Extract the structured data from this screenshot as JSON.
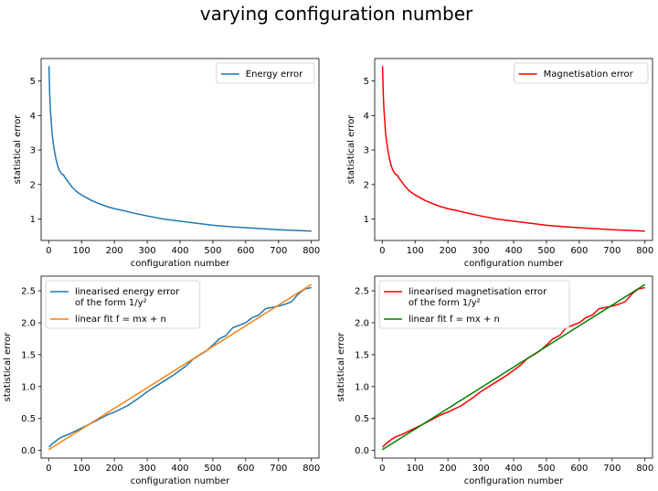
{
  "figure": {
    "title": "varying configuration number"
  },
  "chart_data": [
    {
      "type": "line",
      "xlabel": "configuration number",
      "ylabel": "statistical error",
      "xlim": [
        -23,
        823
      ],
      "ylim": [
        0.38,
        5.65
      ],
      "xticks": [
        0,
        100,
        200,
        300,
        400,
        500,
        600,
        700,
        800
      ],
      "yticks": [
        1,
        2,
        3,
        4,
        5
      ],
      "legend_position": "upper right",
      "series": [
        {
          "name": "Energy error",
          "color": "#1f77b4",
          "x": [
            1,
            3,
            5,
            8,
            10,
            14,
            18,
            22,
            27,
            33,
            40,
            45,
            50,
            60,
            70,
            80,
            90,
            100,
            115,
            130,
            150,
            175,
            200,
            230,
            260,
            300,
            350,
            400,
            450,
            500,
            550,
            600,
            650,
            700,
            750,
            800
          ],
          "y": [
            5.43,
            4.65,
            4.2,
            3.8,
            3.5,
            3.2,
            2.95,
            2.75,
            2.55,
            2.4,
            2.3,
            2.28,
            2.2,
            2.07,
            1.94,
            1.84,
            1.76,
            1.7,
            1.62,
            1.54,
            1.46,
            1.37,
            1.3,
            1.24,
            1.17,
            1.09,
            1.0,
            0.94,
            0.88,
            0.82,
            0.78,
            0.75,
            0.72,
            0.69,
            0.67,
            0.65
          ]
        }
      ]
    },
    {
      "type": "line",
      "xlabel": "configuration number",
      "ylabel": "statistical error",
      "xlim": [
        -23,
        823
      ],
      "ylim": [
        0.38,
        5.65
      ],
      "xticks": [
        0,
        100,
        200,
        300,
        400,
        500,
        600,
        700,
        800
      ],
      "yticks": [
        1,
        2,
        3,
        4,
        5
      ],
      "legend_position": "upper right",
      "series": [
        {
          "name": "Magnetisation error",
          "color": "#ff0000",
          "x": [
            1,
            3,
            5,
            8,
            10,
            14,
            18,
            22,
            27,
            33,
            40,
            45,
            50,
            60,
            70,
            80,
            90,
            100,
            115,
            130,
            150,
            175,
            200,
            230,
            260,
            300,
            350,
            400,
            450,
            500,
            550,
            600,
            650,
            700,
            750,
            800
          ],
          "y": [
            5.43,
            4.65,
            4.2,
            3.8,
            3.5,
            3.2,
            2.95,
            2.75,
            2.55,
            2.4,
            2.3,
            2.28,
            2.2,
            2.07,
            1.94,
            1.84,
            1.76,
            1.7,
            1.62,
            1.54,
            1.46,
            1.37,
            1.3,
            1.24,
            1.17,
            1.09,
            1.0,
            0.94,
            0.88,
            0.82,
            0.78,
            0.75,
            0.72,
            0.69,
            0.67,
            0.65
          ]
        }
      ]
    },
    {
      "type": "line",
      "xlabel": "configuration number",
      "ylabel": "statistical error",
      "xlim": [
        -23,
        823
      ],
      "ylim": [
        -0.12,
        2.73
      ],
      "xticks": [
        0,
        100,
        200,
        300,
        400,
        500,
        600,
        700,
        800
      ],
      "yticks": [
        0.0,
        0.5,
        1.0,
        1.5,
        2.0,
        2.5
      ],
      "legend_position": "upper left",
      "series": [
        {
          "name": "linearised energy error\n of the form 1/y²",
          "color": "#1f77b4",
          "x": [
            1,
            10,
            20,
            30,
            40,
            50,
            60,
            80,
            100,
            120,
            150,
            180,
            200,
            240,
            280,
            300,
            340,
            380,
            420,
            440,
            480,
            500,
            520,
            540,
            560,
            580,
            600,
            620,
            640,
            660,
            680,
            700,
            720,
            740,
            760,
            780,
            800
          ],
          "y": [
            0.05,
            0.1,
            0.14,
            0.18,
            0.21,
            0.23,
            0.25,
            0.3,
            0.35,
            0.4,
            0.48,
            0.56,
            0.6,
            0.7,
            0.84,
            0.92,
            1.05,
            1.18,
            1.33,
            1.43,
            1.56,
            1.65,
            1.75,
            1.8,
            1.92,
            1.96,
            2.0,
            2.08,
            2.12,
            2.22,
            2.24,
            2.26,
            2.29,
            2.33,
            2.45,
            2.53,
            2.55
          ]
        },
        {
          "name": "linear fit f = mx + n",
          "color": "#ff7f0e",
          "x": [
            0,
            800
          ],
          "y": [
            0.01,
            2.6
          ]
        }
      ]
    },
    {
      "type": "line",
      "xlabel": "configuration number",
      "ylabel": "statistical error",
      "xlim": [
        -23,
        823
      ],
      "ylim": [
        -0.12,
        2.73
      ],
      "xticks": [
        0,
        100,
        200,
        300,
        400,
        500,
        600,
        700,
        800
      ],
      "yticks": [
        0.0,
        0.5,
        1.0,
        1.5,
        2.0,
        2.5
      ],
      "legend_position": "upper left",
      "series": [
        {
          "name": "linearised magnetisation error\n of the form 1/y²",
          "color": "#ff0000",
          "x": [
            1,
            10,
            20,
            30,
            40,
            50,
            60,
            80,
            100,
            120,
            150,
            180,
            200,
            240,
            280,
            300,
            340,
            380,
            420,
            440,
            480,
            500,
            520,
            540,
            560,
            580,
            600,
            620,
            640,
            660,
            680,
            700,
            720,
            740,
            760,
            780,
            800
          ],
          "y": [
            0.05,
            0.1,
            0.14,
            0.18,
            0.21,
            0.23,
            0.25,
            0.3,
            0.35,
            0.4,
            0.48,
            0.56,
            0.6,
            0.7,
            0.84,
            0.92,
            1.05,
            1.18,
            1.33,
            1.43,
            1.56,
            1.65,
            1.75,
            1.8,
            1.92,
            1.96,
            2.0,
            2.08,
            2.12,
            2.22,
            2.24,
            2.26,
            2.29,
            2.33,
            2.45,
            2.53,
            2.55
          ]
        },
        {
          "name": "linear fit f = mx + n",
          "color": "#008000",
          "x": [
            0,
            800
          ],
          "y": [
            0.01,
            2.6
          ]
        }
      ]
    }
  ]
}
